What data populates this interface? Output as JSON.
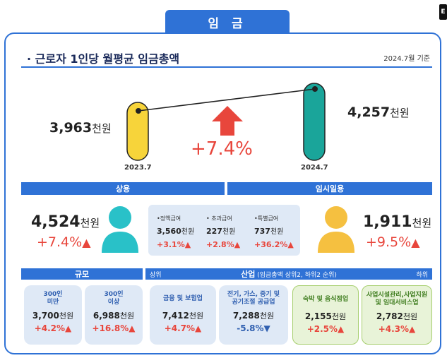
{
  "tab_title": "임 금",
  "corner_mark": "E",
  "heading": "· 근로자 1인당 월평균 임금총액",
  "ref_date": "2024.7월 기준",
  "avg": {
    "left_value": "3,963",
    "left_unit": "천원",
    "left_label": "2023.7",
    "right_value": "4,257",
    "right_unit": "천원",
    "right_label": "2024.7",
    "change": "+7.4%",
    "left_color": "#f7d43a",
    "right_color": "#1aa59a"
  },
  "regular": {
    "header": "상용",
    "value": "4,524",
    "unit": "천원",
    "pct": "+7.4%",
    "color": "#29c1c8"
  },
  "temp": {
    "header": "임시일용",
    "value": "1,911",
    "unit": "천원",
    "pct": "+9.5%",
    "color": "#f5c040"
  },
  "sub": [
    {
      "label": "•정액급여",
      "value": "3,560",
      "unit": "천원",
      "pct": "+3.1%"
    },
    {
      "label": "• 초과급여",
      "value": "227",
      "unit": "천원",
      "pct": "+2.8%"
    },
    {
      "label": "•특별급여",
      "value": "737",
      "unit": "천원",
      "pct": "+36.2%"
    }
  ],
  "size_header": "규모",
  "industry": {
    "header": "산업",
    "note": "(임금총액 상위2, 하위2 순위)",
    "left": "상위",
    "right": "하위"
  },
  "cards": [
    {
      "title1": "300인",
      "title2": "미만",
      "value": "3,700",
      "unit": "천원",
      "pct": "+4.2%"
    },
    {
      "title1": "300인",
      "title2": "이상",
      "value": "6,988",
      "unit": "천원",
      "pct": "+16.8%"
    },
    {
      "title1": "금융 및 보험업",
      "title2": "",
      "value": "7,412",
      "unit": "천원",
      "pct": "+4.7%"
    },
    {
      "title1": "전기, 가스, 증기 및",
      "title2": "공기조절 공급업",
      "value": "7,288",
      "unit": "천원",
      "pct": "-5.8%"
    },
    {
      "title1": "숙박 및 음식점업",
      "title2": "",
      "value": "2,155",
      "unit": "천원",
      "pct": "+2.5%"
    },
    {
      "title1": "사업시설관리,사업지원",
      "title2": "및 임대서비스업",
      "value": "2,782",
      "unit": "천원",
      "pct": "+4.3%"
    }
  ]
}
